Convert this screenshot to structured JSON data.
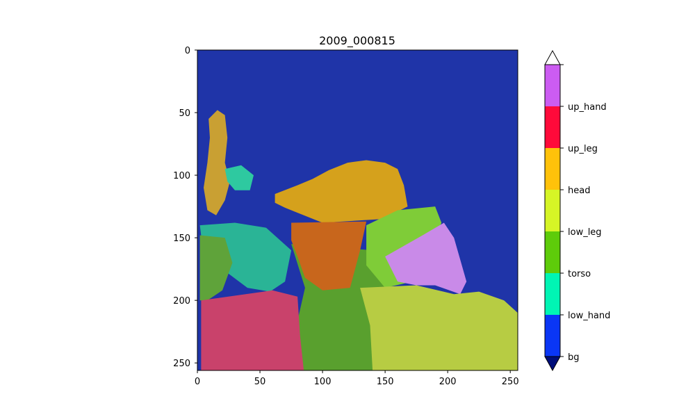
{
  "chart_data": {
    "type": "heatmap",
    "title": "2009_000815",
    "xlabel": "",
    "ylabel": "",
    "xlim": [
      0,
      256
    ],
    "ylim": [
      256,
      0
    ],
    "x_ticks": [
      0,
      50,
      100,
      150,
      200,
      250
    ],
    "y_ticks": [
      0,
      50,
      100,
      150,
      200,
      250
    ],
    "colorbar": {
      "labels": [
        "bg",
        "low_hand",
        "torso",
        "low_leg",
        "head",
        "up_leg",
        "up_hand"
      ],
      "colors": [
        "#000e7a",
        "#0a36f5",
        "#00f5b4",
        "#5ecc0a",
        "#d6f526",
        "#ffc20a",
        "#ff0a3a",
        "#cc5cf2"
      ],
      "extend": "both"
    },
    "segments": [
      {
        "label": "bg",
        "color": "#1f34a8",
        "points": [
          [
            0,
            0
          ],
          [
            256,
            0
          ],
          [
            256,
            256
          ],
          [
            0,
            256
          ]
        ]
      },
      {
        "label": "up_leg",
        "color": "#c9a033",
        "points": [
          [
            9,
            55
          ],
          [
            16,
            48
          ],
          [
            22,
            52
          ],
          [
            24,
            70
          ],
          [
            22,
            90
          ],
          [
            26,
            105
          ],
          [
            22,
            120
          ],
          [
            15,
            132
          ],
          [
            8,
            128
          ],
          [
            5,
            110
          ],
          [
            8,
            90
          ],
          [
            10,
            70
          ]
        ]
      },
      {
        "label": "low_hand",
        "color": "#2ec9a0",
        "points": [
          [
            22,
            95
          ],
          [
            35,
            92
          ],
          [
            45,
            100
          ],
          [
            42,
            112
          ],
          [
            30,
            112
          ],
          [
            24,
            105
          ]
        ]
      },
      {
        "label": "up_leg",
        "color": "#d5a11c",
        "points": [
          [
            62,
            115
          ],
          [
            80,
            108
          ],
          [
            92,
            103
          ],
          [
            105,
            96
          ],
          [
            120,
            90
          ],
          [
            135,
            88
          ],
          [
            150,
            90
          ],
          [
            160,
            95
          ],
          [
            165,
            108
          ],
          [
            168,
            125
          ],
          [
            148,
            135
          ],
          [
            100,
            138
          ],
          [
            80,
            130
          ],
          [
            70,
            126
          ],
          [
            62,
            122
          ]
        ]
      },
      {
        "label": "low_hand",
        "color": "#2ab496",
        "points": [
          [
            2,
            140
          ],
          [
            30,
            138
          ],
          [
            55,
            142
          ],
          [
            75,
            160
          ],
          [
            70,
            185
          ],
          [
            58,
            193
          ],
          [
            40,
            190
          ],
          [
            20,
            175
          ],
          [
            5,
            165
          ]
        ]
      },
      {
        "label": "low_leg",
        "color": "#5fa33a",
        "points": [
          [
            2,
            148
          ],
          [
            22,
            150
          ],
          [
            28,
            170
          ],
          [
            20,
            192
          ],
          [
            8,
            200
          ],
          [
            2,
            200
          ]
        ]
      },
      {
        "label": "low_leg",
        "color": "#59a02e",
        "points": [
          [
            75,
            155
          ],
          [
            140,
            160
          ],
          [
            155,
            185
          ],
          [
            150,
            240
          ],
          [
            140,
            256
          ],
          [
            78,
            256
          ],
          [
            78,
            225
          ],
          [
            86,
            190
          ]
        ]
      },
      {
        "label": "up_leg",
        "color": "#c8661c",
        "points": [
          [
            75,
            138
          ],
          [
            135,
            137
          ],
          [
            130,
            160
          ],
          [
            122,
            190
          ],
          [
            100,
            192
          ],
          [
            86,
            182
          ],
          [
            80,
            165
          ],
          [
            75,
            152
          ]
        ]
      },
      {
        "label": "torso",
        "color": "#7fcc38",
        "points": [
          [
            135,
            140
          ],
          [
            160,
            128
          ],
          [
            190,
            125
          ],
          [
            195,
            138
          ],
          [
            185,
            160
          ],
          [
            172,
            185
          ],
          [
            150,
            190
          ],
          [
            135,
            172
          ]
        ]
      },
      {
        "label": "up_hand",
        "color": "#c98ae8",
        "points": [
          [
            150,
            165
          ],
          [
            180,
            148
          ],
          [
            197,
            138
          ],
          [
            205,
            150
          ],
          [
            215,
            185
          ],
          [
            210,
            195
          ],
          [
            190,
            188
          ],
          [
            175,
            188
          ],
          [
            160,
            185
          ]
        ]
      },
      {
        "label": "head",
        "color": "#b7cc43",
        "points": [
          [
            130,
            190
          ],
          [
            175,
            188
          ],
          [
            205,
            195
          ],
          [
            225,
            193
          ],
          [
            245,
            200
          ],
          [
            256,
            210
          ],
          [
            256,
            256
          ],
          [
            140,
            256
          ],
          [
            138,
            220
          ]
        ]
      },
      {
        "label": "up_hand",
        "color": "#c9426b",
        "points": [
          [
            3,
            200
          ],
          [
            60,
            192
          ],
          [
            80,
            197
          ],
          [
            82,
            228
          ],
          [
            85,
            256
          ],
          [
            3,
            256
          ]
        ]
      }
    ]
  }
}
